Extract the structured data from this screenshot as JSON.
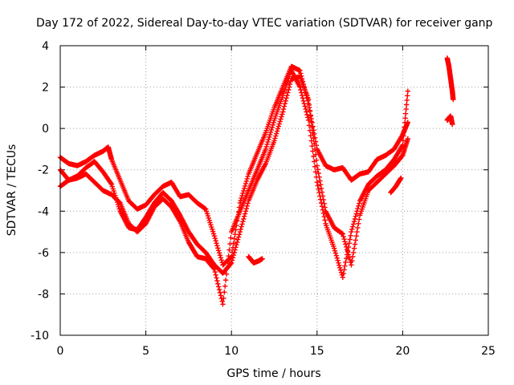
{
  "chart_data": {
    "type": "scatter",
    "title": "Day 172 of 2022, Sidereal Day-to-day VTEC variation (SDTVAR) for receiver ganp",
    "xlabel": "GPS time / hours",
    "ylabel": "SDTVAR / TECUs",
    "xlim": [
      0,
      25
    ],
    "ylim": [
      -10,
      4
    ],
    "xticks": [
      "0",
      "5",
      "10",
      "15",
      "20",
      "25"
    ],
    "yticks": [
      "-10",
      "-8",
      "-6",
      "-4",
      "-2",
      "0",
      "2",
      "4"
    ],
    "grid": true,
    "marker": "+",
    "color": "#ff0000",
    "series": [
      {
        "x": [
          0.0,
          0.5,
          1.0,
          1.5,
          2.0,
          2.5,
          2.8,
          3.0,
          3.5,
          4.0,
          4.5,
          5.0,
          5.5,
          6.0,
          6.5,
          7.0,
          7.5,
          8.0,
          8.5,
          9.0,
          9.5,
          10.0,
          10.5,
          11.0,
          11.5,
          12.0,
          12.5,
          13.0,
          13.5,
          14.0,
          14.5,
          15.0,
          15.5,
          16.0,
          16.5,
          17.0,
          17.5,
          18.0,
          18.5,
          19.0,
          19.5,
          20.0,
          20.3
        ],
        "y": [
          -1.4,
          -1.7,
          -1.8,
          -1.6,
          -1.3,
          -1.1,
          -0.9,
          -1.5,
          -2.5,
          -3.5,
          -3.9,
          -3.7,
          -3.2,
          -2.8,
          -2.6,
          -3.3,
          -3.2,
          -3.6,
          -3.9,
          -5.2,
          -6.6,
          -6.2,
          -3.6,
          -2.2,
          -1.2,
          -0.2,
          1.0,
          2.0,
          3.0,
          2.8,
          1.2,
          -1.0,
          -1.8,
          -2.0,
          -1.9,
          -2.5,
          -2.2,
          -2.1,
          -1.5,
          -1.3,
          -1.0,
          -0.3,
          0.3
        ]
      },
      {
        "x": [
          0.0,
          0.5,
          1.0,
          1.5,
          2.0,
          2.5,
          3.0,
          3.5,
          4.0,
          4.5,
          5.0,
          5.5,
          6.0,
          6.5,
          7.0,
          7.5,
          8.0,
          8.5,
          9.0,
          9.5,
          10.0,
          10.5,
          11.0,
          11.5,
          12.0,
          12.5,
          13.0,
          13.5,
          14.0,
          14.5,
          15.0,
          15.5,
          16.0,
          16.5,
          17.0,
          17.5,
          18.0,
          18.5,
          19.0,
          19.5,
          20.0,
          20.3
        ],
        "y": [
          -2.0,
          -2.5,
          -2.3,
          -1.9,
          -1.6,
          -2.1,
          -2.7,
          -4.0,
          -4.8,
          -4.9,
          -4.3,
          -3.6,
          -3.1,
          -3.5,
          -4.2,
          -5.0,
          -5.6,
          -6.0,
          -6.6,
          -7.0,
          -6.5,
          -5.0,
          -3.5,
          -2.5,
          -1.7,
          -0.6,
          0.8,
          2.4,
          2.5,
          1.4,
          -1.8,
          -4.0,
          -4.8,
          -5.1,
          -6.6,
          -4.2,
          -3.0,
          -2.6,
          -2.2,
          -1.8,
          -1.3,
          -0.5
        ]
      },
      {
        "x": [
          0.0,
          0.5,
          1.0,
          1.5,
          2.0,
          2.5,
          3.0,
          3.5,
          4.0,
          4.5,
          5.0,
          5.5,
          6.0,
          6.5,
          7.0,
          7.5,
          8.0,
          8.5,
          9.0,
          9.5,
          10.0,
          10.5,
          11.0,
          11.5,
          12.0,
          12.5,
          13.0,
          13.5,
          14.0,
          14.5,
          15.0,
          15.5,
          16.0,
          16.5,
          17.0,
          17.5,
          18.0,
          18.5,
          19.0,
          19.5,
          20.0,
          20.3
        ],
        "y": [
          -2.8,
          -2.5,
          -2.4,
          -2.2,
          -2.6,
          -3.0,
          -3.2,
          -3.6,
          -4.6,
          -5.0,
          -4.6,
          -3.8,
          -3.4,
          -3.8,
          -4.5,
          -5.5,
          -6.2,
          -6.3,
          -6.8,
          -8.5,
          -5.0,
          -4.0,
          -3.0,
          -2.0,
          -1.0,
          0.4,
          1.6,
          2.8,
          2.0,
          0.4,
          -2.6,
          -4.6,
          -5.8,
          -7.2,
          -5.0,
          -3.5,
          -2.7,
          -2.3,
          -2.0,
          -1.5,
          -0.8,
          1.8
        ]
      },
      {
        "x": [
          11.0,
          11.3,
          11.6,
          11.8
        ],
        "y": [
          -6.2,
          -6.5,
          -6.4,
          -6.3
        ]
      },
      {
        "x": [
          19.3,
          19.6,
          19.9
        ],
        "y": [
          -3.1,
          -2.8,
          -2.4
        ]
      },
      {
        "x": [
          22.6,
          22.7,
          22.8,
          22.9,
          22.95
        ],
        "y": [
          3.4,
          3.0,
          2.4,
          1.8,
          1.4
        ]
      },
      {
        "x": [
          22.6,
          22.7,
          22.8,
          22.9
        ],
        "y": [
          0.4,
          0.5,
          0.6,
          0.2
        ]
      }
    ]
  }
}
